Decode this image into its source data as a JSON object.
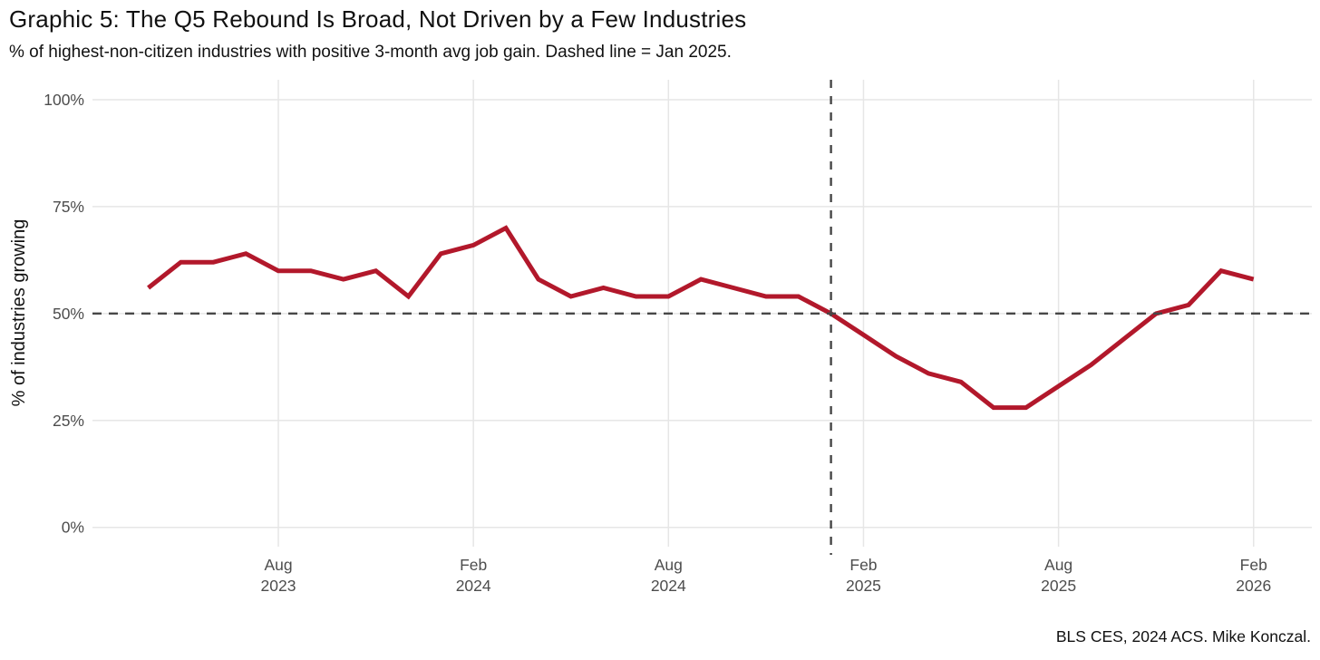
{
  "chart": {
    "title": "Graphic 5: The Q5 Rebound Is Broad, Not Driven by a Few Industries",
    "subtitle": "% of highest-non-citizen industries with positive 3-month avg job gain. Dashed line = Jan 2025.",
    "caption": "BLS CES, 2024 ACS. Mike Konczal.",
    "ylabel": "% of industries growing"
  },
  "chart_data": {
    "type": "line",
    "title": "Graphic 5: The Q5 Rebound Is Broad, Not Driven by a Few Industries",
    "subtitle": "% of highest-non-citizen industries with positive 3-month avg job gain. Dashed line = Jan 2025.",
    "caption": "BLS CES, 2024 ACS. Mike Konczal.",
    "xlabel": "",
    "ylabel": "% of industries growing",
    "ylim": [
      0,
      100
    ],
    "grid": "on",
    "legend": "none",
    "x": [
      "Apr 2023",
      "May 2023",
      "Jun 2023",
      "Jul 2023",
      "Aug 2023",
      "Sep 2023",
      "Oct 2023",
      "Nov 2023",
      "Dec 2023",
      "Jan 2024",
      "Feb 2024",
      "Mar 2024",
      "Apr 2024",
      "May 2024",
      "Jun 2024",
      "Jul 2024",
      "Aug 2024",
      "Sep 2024",
      "Oct 2024",
      "Nov 2024",
      "Dec 2024",
      "Jan 2025",
      "Feb 2025",
      "Mar 2025",
      "Apr 2025",
      "May 2025",
      "Jun 2025",
      "Jul 2025",
      "Aug 2025",
      "Sep 2025",
      "Oct 2025",
      "Nov 2025",
      "Dec 2025",
      "Jan 2026",
      "Feb 2026"
    ],
    "values": [
      56,
      62,
      62,
      64,
      60,
      60,
      58,
      60,
      54,
      64,
      66,
      70,
      58,
      54,
      56,
      54,
      54,
      58,
      56,
      54,
      54,
      50,
      45,
      40,
      36,
      34,
      28,
      28,
      33,
      38,
      44,
      50,
      52,
      60,
      58
    ],
    "y_ticks": [
      {
        "label": "0%",
        "value": 0
      },
      {
        "label": "25%",
        "value": 25
      },
      {
        "label": "50%",
        "value": 50
      },
      {
        "label": "75%",
        "value": 75
      },
      {
        "label": "100%",
        "value": 100
      }
    ],
    "x_ticks": [
      {
        "month": "Aug",
        "year": "2023",
        "index": 4
      },
      {
        "month": "Feb",
        "year": "2024",
        "index": 10
      },
      {
        "month": "Aug",
        "year": "2024",
        "index": 16
      },
      {
        "month": "Feb",
        "year": "2025",
        "index": 22
      },
      {
        "month": "Aug",
        "year": "2025",
        "index": 28
      },
      {
        "month": "Feb",
        "year": "2026",
        "index": 34
      }
    ],
    "reference_lines": {
      "horizontal_value": 50,
      "vertical_label": "Jan 2025",
      "vertical_index": 21
    },
    "colors": {
      "series": "#B2182B",
      "reference": "#474747",
      "grid": "#E6E6E6",
      "axis_text": "#4D4D4D",
      "text": "#111111"
    }
  }
}
